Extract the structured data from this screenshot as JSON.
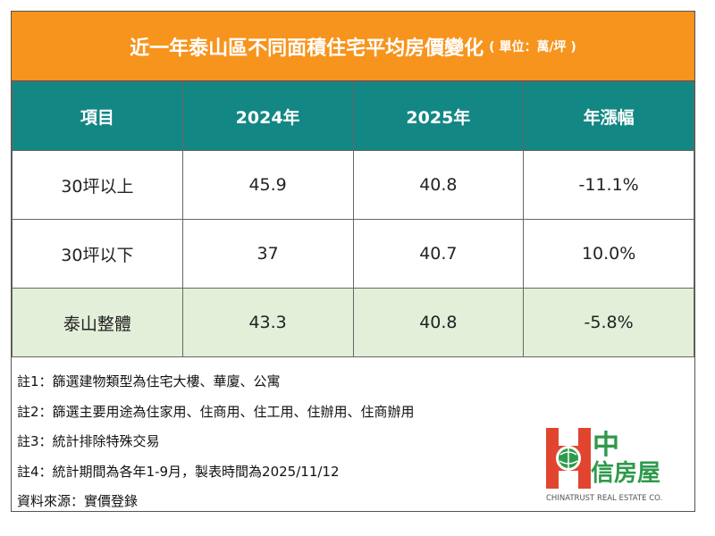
{
  "header": {
    "title": "近一年泰山區不同面積住宅平均房價變化",
    "unit": "( 單位：萬/坪 )"
  },
  "table": {
    "columns": [
      "項目",
      "2024年",
      "2025年",
      "年漲幅"
    ],
    "rows": [
      [
        "30坪以上",
        "45.9",
        "40.8",
        "-11.1%"
      ],
      [
        "30坪以下",
        "37",
        "40.7",
        "10.0%"
      ],
      [
        "泰山整體",
        "43.3",
        "40.8",
        "-5.8%"
      ]
    ]
  },
  "notes": [
    "註1：篩選建物類型為住宅大樓、華廈、公寓",
    "註2：篩選主要用途為住家用、住商用、住工用、住辦用、住商辦用",
    "註3：統計排除特殊交易",
    "註4：統計期間為各年1-9月，製表時間為2025/11/12",
    "資料來源：實價登錄"
  ],
  "logo": {
    "mark": "中",
    "name": "信房屋",
    "subtitle": "CHINATRUST REAL ESTATE CO."
  }
}
